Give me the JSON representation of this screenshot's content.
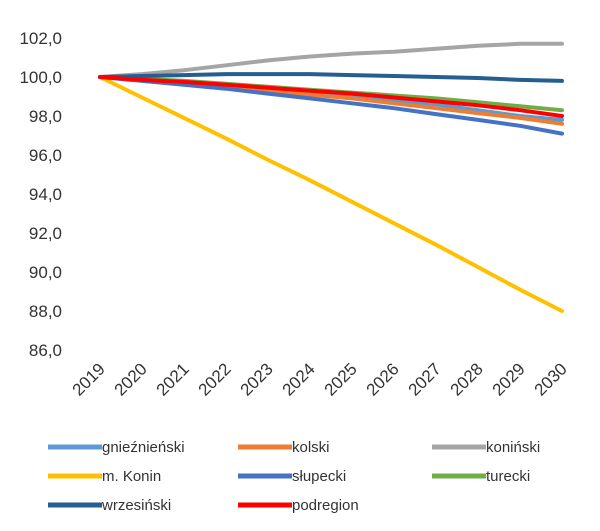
{
  "chart_data": {
    "type": "line",
    "x": [
      "2019",
      "2020",
      "2021",
      "2022",
      "2023",
      "2024",
      "2025",
      "2026",
      "2027",
      "2028",
      "2029",
      "2030"
    ],
    "ylim": [
      86,
      102
    ],
    "yticks": [
      "86,0",
      "88,0",
      "90,0",
      "92,0",
      "94,0",
      "96,0",
      "98,0",
      "100,0",
      "102,0"
    ],
    "grid": false,
    "legend_position": "bottom",
    "series": [
      {
        "name": "gnieźnieński",
        "color": "#5b9bd5",
        "values": [
          100.0,
          99.85,
          99.7,
          99.55,
          99.4,
          99.2,
          99.0,
          98.8,
          98.6,
          98.3,
          98.0,
          97.8
        ]
      },
      {
        "name": "kolski",
        "color": "#ed7d31",
        "values": [
          100.0,
          99.85,
          99.7,
          99.5,
          99.3,
          99.1,
          98.9,
          98.65,
          98.4,
          98.15,
          97.9,
          97.6
        ]
      },
      {
        "name": "koniński",
        "color": "#a5a5a5",
        "values": [
          100.0,
          100.15,
          100.35,
          100.6,
          100.85,
          101.05,
          101.2,
          101.3,
          101.45,
          101.6,
          101.7,
          101.7
        ]
      },
      {
        "name": "m. Konin",
        "color": "#ffc000",
        "values": [
          100.0,
          98.95,
          97.9,
          96.85,
          95.75,
          94.7,
          93.6,
          92.5,
          91.4,
          90.25,
          89.1,
          88.0
        ]
      },
      {
        "name": "słupecki",
        "color": "#4472c4",
        "values": [
          100.0,
          99.8,
          99.6,
          99.4,
          99.15,
          98.9,
          98.65,
          98.4,
          98.1,
          97.8,
          97.5,
          97.1
        ]
      },
      {
        "name": "turecki",
        "color": "#70ad47",
        "values": [
          100.0,
          99.9,
          99.8,
          99.65,
          99.5,
          99.35,
          99.2,
          99.05,
          98.9,
          98.7,
          98.5,
          98.3
        ]
      },
      {
        "name": "wrzesiński",
        "color": "#255e91",
        "values": [
          100.0,
          100.05,
          100.1,
          100.15,
          100.15,
          100.15,
          100.1,
          100.05,
          100.0,
          99.95,
          99.85,
          99.8
        ]
      },
      {
        "name": "podregion",
        "color": "#ff0000",
        "values": [
          100.0,
          99.85,
          99.75,
          99.6,
          99.45,
          99.3,
          99.15,
          98.95,
          98.75,
          98.55,
          98.3,
          98.0
        ]
      }
    ]
  }
}
